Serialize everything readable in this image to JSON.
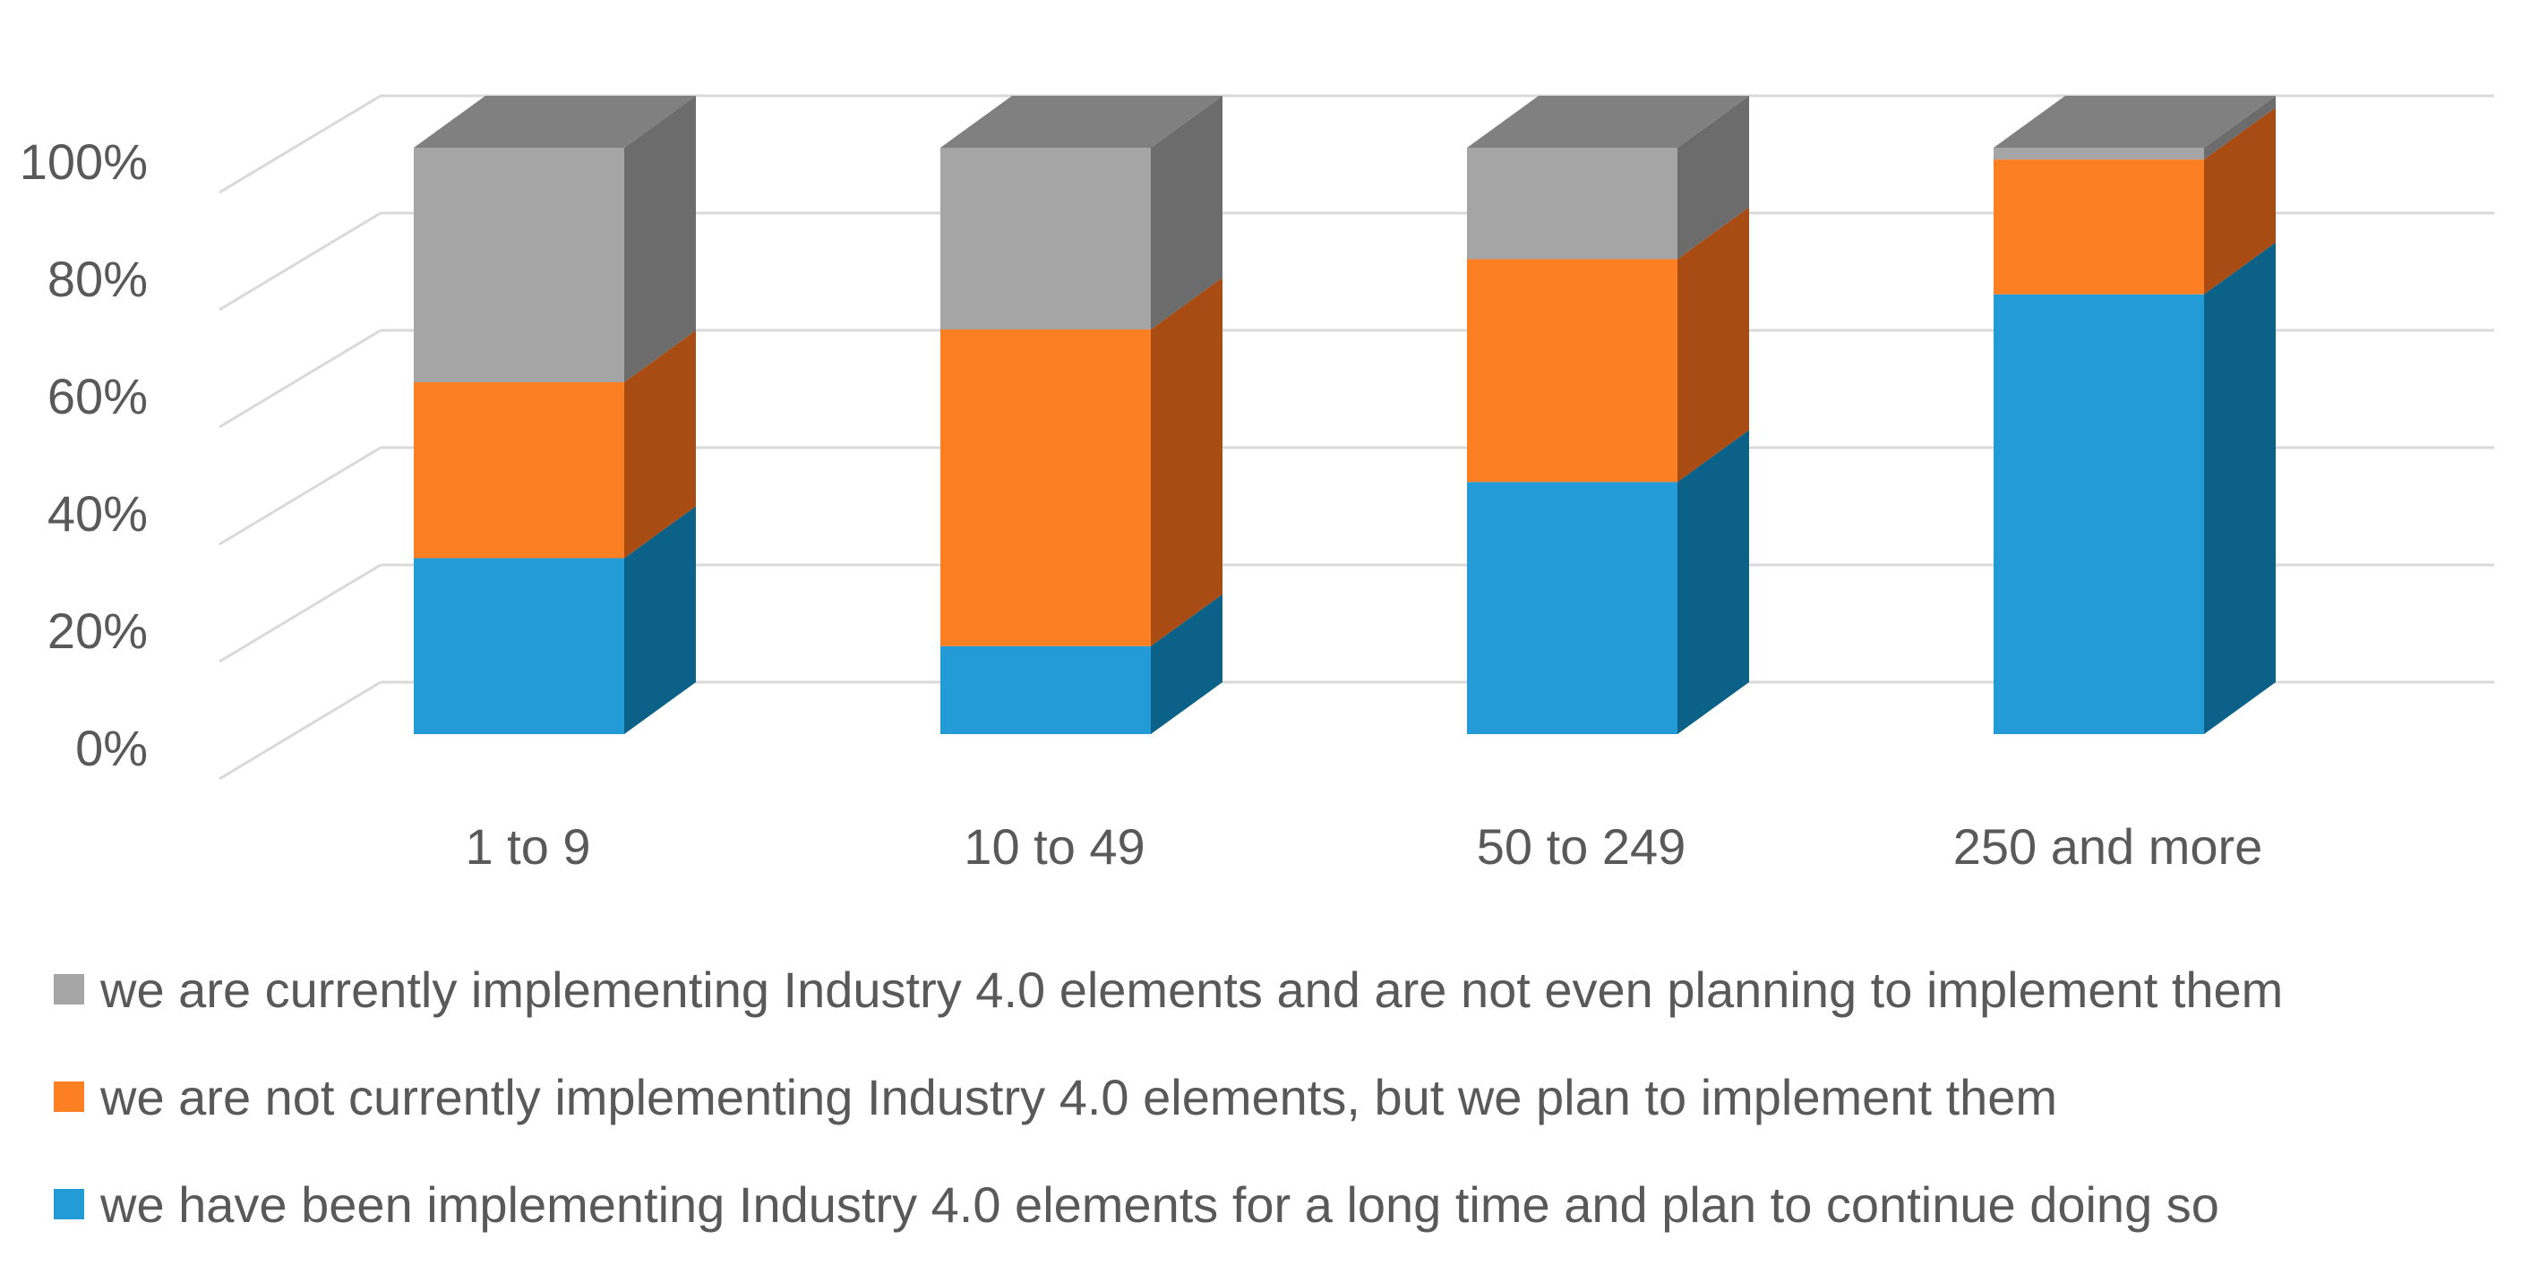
{
  "chart_data": {
    "type": "bar",
    "stacked": true,
    "three_d": true,
    "percent_axis": true,
    "categories": [
      "1 to 9",
      "10 to 49",
      "50 to 249",
      "250 and more"
    ],
    "series": [
      {
        "name": "we have been implementing Industry 4.0 elements for a long time and plan to continue doing so",
        "color": "#229bd6",
        "side_color": "#0b6187",
        "values": [
          30,
          15,
          43,
          75
        ]
      },
      {
        "name": "we are not currently implementing Industry 4.0 elements, but we plan to implement them",
        "color": "#fd7f23",
        "side_color": "#a84c13",
        "values": [
          30,
          54,
          38,
          23
        ]
      },
      {
        "name": "we are currently implementing Industry 4.0 elements and are not even planning to implement them",
        "color": "#a5a5a5",
        "side_color": "#6c6c6c",
        "values": [
          40,
          31,
          19,
          2
        ]
      }
    ],
    "y_ticks": [
      "0%",
      "20%",
      "40%",
      "60%",
      "80%",
      "100%"
    ],
    "ylim": [
      0,
      100
    ],
    "grid": true,
    "legend_position": "bottom",
    "title": "",
    "xlabel": "",
    "ylabel": ""
  },
  "legend_order": [
    2,
    1,
    0
  ]
}
